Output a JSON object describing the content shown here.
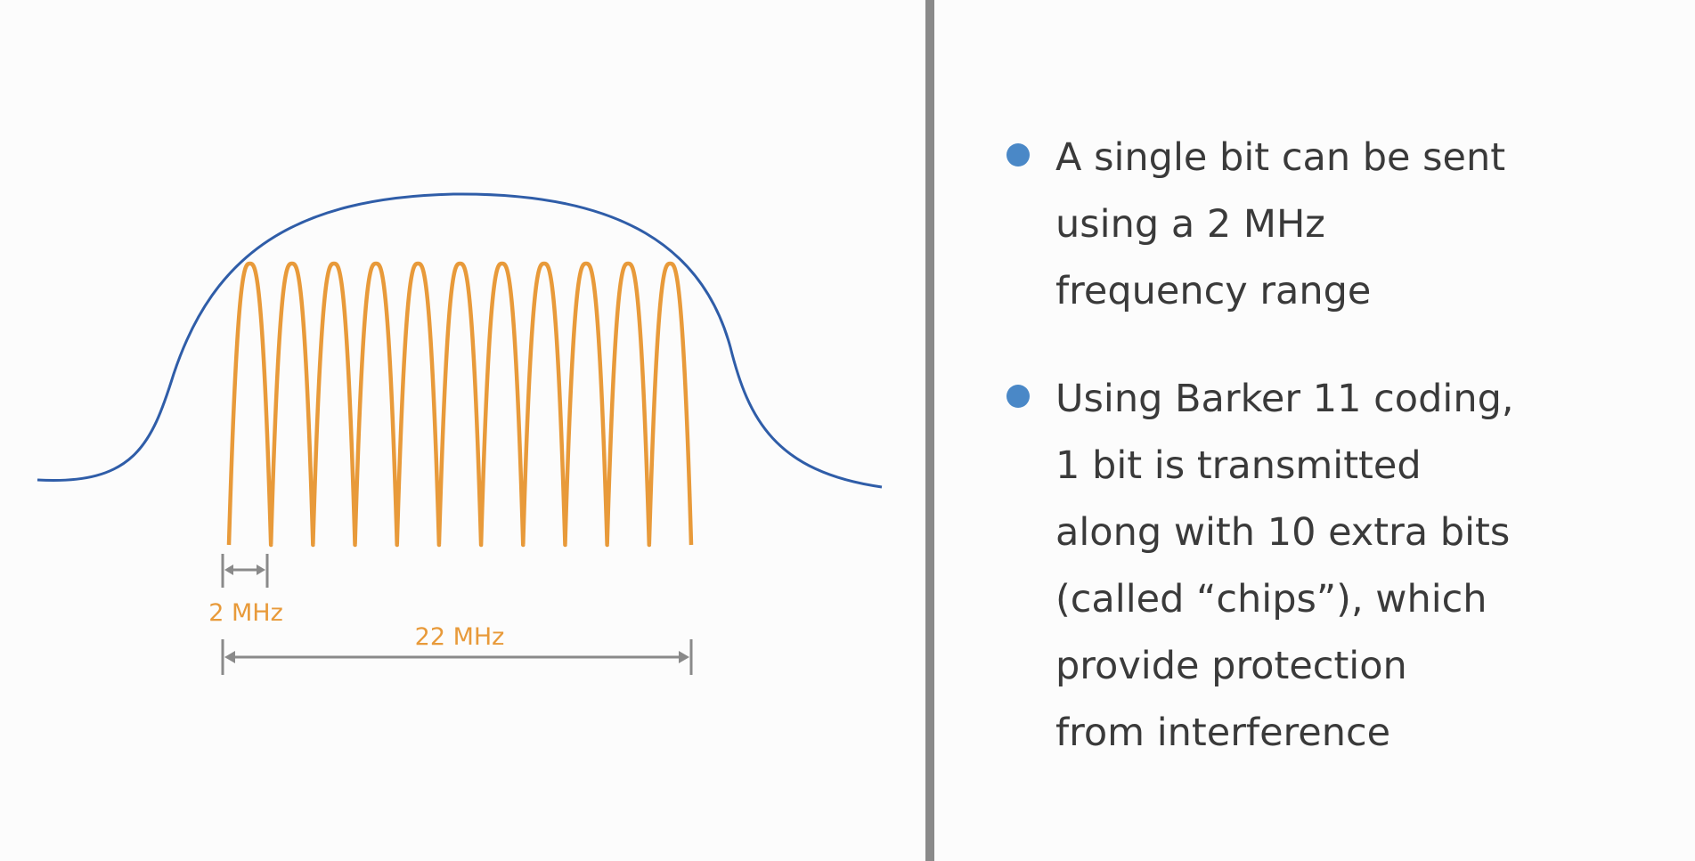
{
  "diagram": {
    "signal_color": "#e89a3a",
    "envelope_color": "#2f5da8",
    "dimension_color": "#8a8a8a",
    "label_small": "2 MHz",
    "label_wide": "22 MHz"
  },
  "bullets": [
    {
      "text": "A single bit can be sent\nusing a 2 MHz\nfrequency range"
    },
    {
      "text": "Using Barker 11 coding,\n1 bit is transmitted\nalong with 10 extra bits\n(called “chips”), which\nprovide protection\nfrom interference"
    }
  ],
  "colors": {
    "bullet_dot": "#4a88c7",
    "text": "#3a3a3a",
    "divider": "#8a8a8a"
  }
}
